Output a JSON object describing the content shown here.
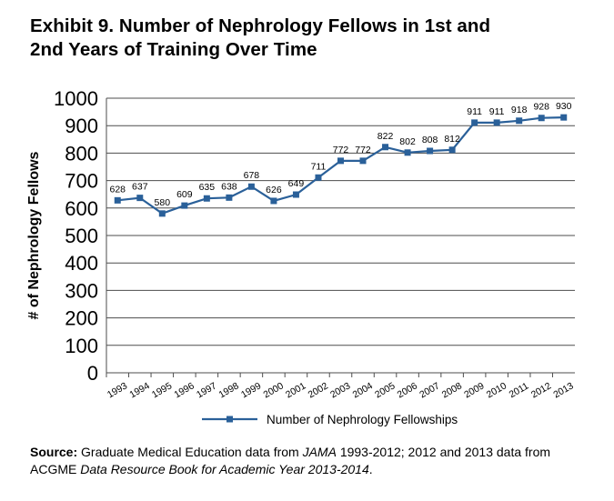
{
  "title_line1": "Exhibit 9. Number of Nephrology Fellows in 1st and",
  "title_line2": "2nd Years of Training Over Time",
  "source": {
    "label": "Source:",
    "text1": " Graduate Medical Education data from ",
    "em1": "JAMA",
    "text2": " 1993-2012; 2012 and 2013 data from ACGME ",
    "em2": "Data Resource Book for Academic Year 2013-2014",
    "text3": "."
  },
  "chart_data": {
    "type": "line",
    "title": "Exhibit 9. Number of Nephrology Fellows in 1st and 2nd Years of Training Over Time",
    "xlabel": "",
    "ylabel": "# of Nephrology Fellows",
    "ylim": [
      0,
      1000
    ],
    "yticks": [
      "0",
      "100",
      "200",
      "300",
      "400",
      "500",
      "600",
      "700",
      "800",
      "900",
      "1000"
    ],
    "grid": true,
    "legend_position": "bottom",
    "x_tick_labels": [
      "1993",
      "1994",
      "1995",
      "1996",
      "1997",
      "1998",
      "1999",
      "2000",
      "2001",
      "2002",
      "2003",
      "2004",
      "2005",
      "2006",
      "2007",
      "2008",
      "2009",
      "2010",
      "2011",
      "2012",
      "2013"
    ],
    "series": [
      {
        "name": "Number of Nephrology Fellowships",
        "color": "#2a6099",
        "values": [
          628,
          637,
          580,
          609,
          635,
          638,
          678,
          626,
          649,
          711,
          772,
          772,
          822,
          802,
          808,
          812,
          911,
          911,
          918,
          928,
          930
        ]
      }
    ]
  }
}
